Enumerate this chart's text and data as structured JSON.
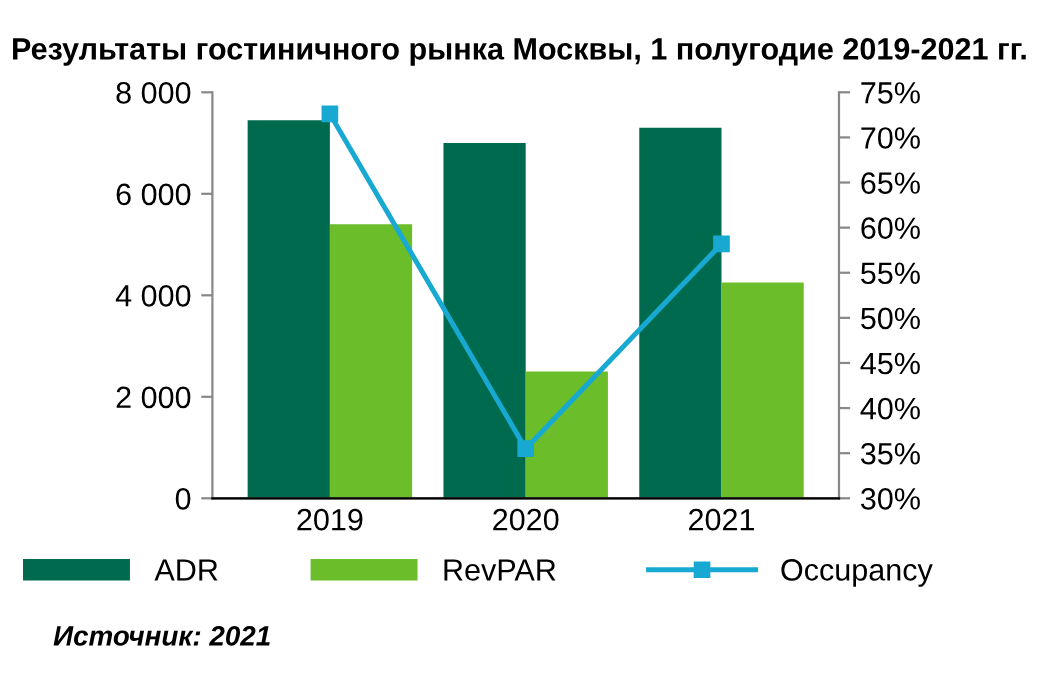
{
  "chart_data": {
    "type": "bar",
    "title": "Результаты гостиничного рынка Москвы, 1 полугодие 2019-2021 гг.",
    "categories": [
      "2019",
      "2020",
      "2021"
    ],
    "series": [
      {
        "name": "ADR",
        "color": "#006a4e",
        "values": [
          7450,
          7000,
          7300
        ]
      },
      {
        "name": "RevPAR",
        "color": "#6bbd2a",
        "values": [
          5400,
          2500,
          4250
        ]
      },
      {
        "name": "Occupancy",
        "type": "line",
        "axis": "y2",
        "color": "#17a9d2",
        "values": [
          72.6,
          35.5,
          58.2
        ]
      }
    ],
    "ylim": [
      0,
      8000
    ],
    "yticks": [
      0,
      {
        "value": 2000,
        "label": "2 000"
      },
      {
        "value": 4000,
        "label": "4 000"
      },
      {
        "value": 6000,
        "label": "6 000"
      },
      {
        "value": 8000,
        "label": "8 000"
      }
    ],
    "y2lim": [
      30,
      75
    ],
    "y2ticks": [
      {
        "value": 30,
        "label": "30%"
      },
      {
        "value": 35,
        "label": "35%"
      },
      {
        "value": 40,
        "label": "40%"
      },
      {
        "value": 45,
        "label": "45%"
      },
      {
        "value": 50,
        "label": "50%"
      },
      {
        "value": 55,
        "label": "55%"
      },
      {
        "value": 60,
        "label": "60%"
      },
      {
        "value": 65,
        "label": "65%"
      },
      {
        "value": 70,
        "label": "70%"
      },
      {
        "value": 75,
        "label": "75%"
      }
    ],
    "marker": "square",
    "legend": "bottom",
    "grid": false,
    "annotations": [
      "Источник: 2021"
    ]
  }
}
